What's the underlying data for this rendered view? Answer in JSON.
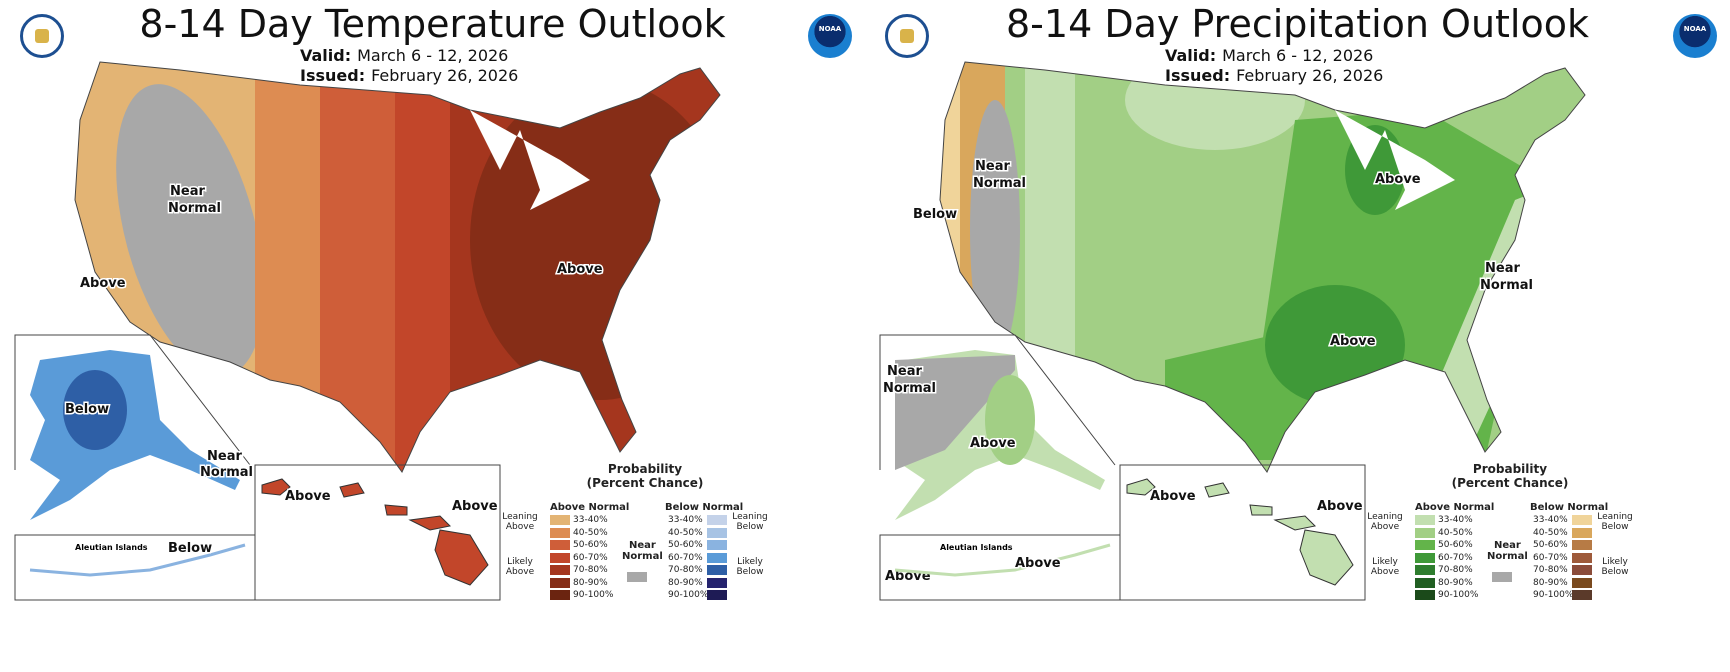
{
  "panels": [
    {
      "title": "8-14 Day Temperature Outlook",
      "valid_label": "Valid:",
      "valid": "March 6 - 12, 2026",
      "issued_label": "Issued:",
      "issued": "February 26, 2026",
      "map_labels": {
        "west": "Above",
        "nn1": "Near",
        "nn2": "Normal",
        "east": "Above",
        "alaska": "Below",
        "ak_nn1": "Near",
        "ak_nn2": "Normal",
        "aleutian_title": "Aleutian Islands",
        "aleutian": "Below",
        "hawaii1": "Above",
        "hawaii2": "Above"
      },
      "colors": {
        "above": [
          "#e3b474",
          "#dd8c52",
          "#cf5e39",
          "#c2462a",
          "#a5361e",
          "#862d17",
          "#6b2410"
        ],
        "below": [
          "#c4d2e9",
          "#a7c3e4",
          "#8ab3e0",
          "#5a9bd8",
          "#2e5fa6",
          "#25236e",
          "#1e1b55"
        ],
        "near": "#a8a8a8"
      }
    },
    {
      "title": "8-14 Day Precipitation Outlook",
      "valid_label": "Valid:",
      "valid": "March 6 - 12, 2026",
      "issued_label": "Issued:",
      "issued": "February 26, 2026",
      "map_labels": {
        "west": "Below",
        "nn1": "Near",
        "nn2": "Normal",
        "east": "Above",
        "south": "Above",
        "ne1": "Near",
        "ne2": "Normal",
        "ak_nn1": "Near",
        "ak_nn2": "Normal",
        "alaska": "Above",
        "aleutian_title": "Aleutian Islands",
        "aleutian": "Above",
        "aleutian2": "Above",
        "hawaii1": "Above",
        "hawaii2": "Above"
      },
      "colors": {
        "above": [
          "#c2dfb0",
          "#a2cf85",
          "#63b44a",
          "#3f9938",
          "#2e7d2e",
          "#215f22",
          "#1b4a1a"
        ],
        "below": [
          "#f0d49a",
          "#d9a75c",
          "#b77b45",
          "#9e5a3a",
          "#8b4c3a",
          "#7a4a1e",
          "#5b3a2a"
        ],
        "near": "#a8a8a8"
      }
    }
  ],
  "legend": {
    "title1": "Probability",
    "title2": "(Percent Chance)",
    "above_header": "Above Normal",
    "below_header": "Below Normal",
    "near1": "Near",
    "near2": "Normal",
    "ranges": [
      "33-40%",
      "40-50%",
      "50-60%",
      "60-70%",
      "70-80%",
      "80-90%",
      "90-100%"
    ],
    "temp_sides": {
      "lean_above": "Leaning Above",
      "likely_above": "Likely Above",
      "lean_below": "Leaning Below",
      "likely_below": "Likely Below"
    }
  }
}
